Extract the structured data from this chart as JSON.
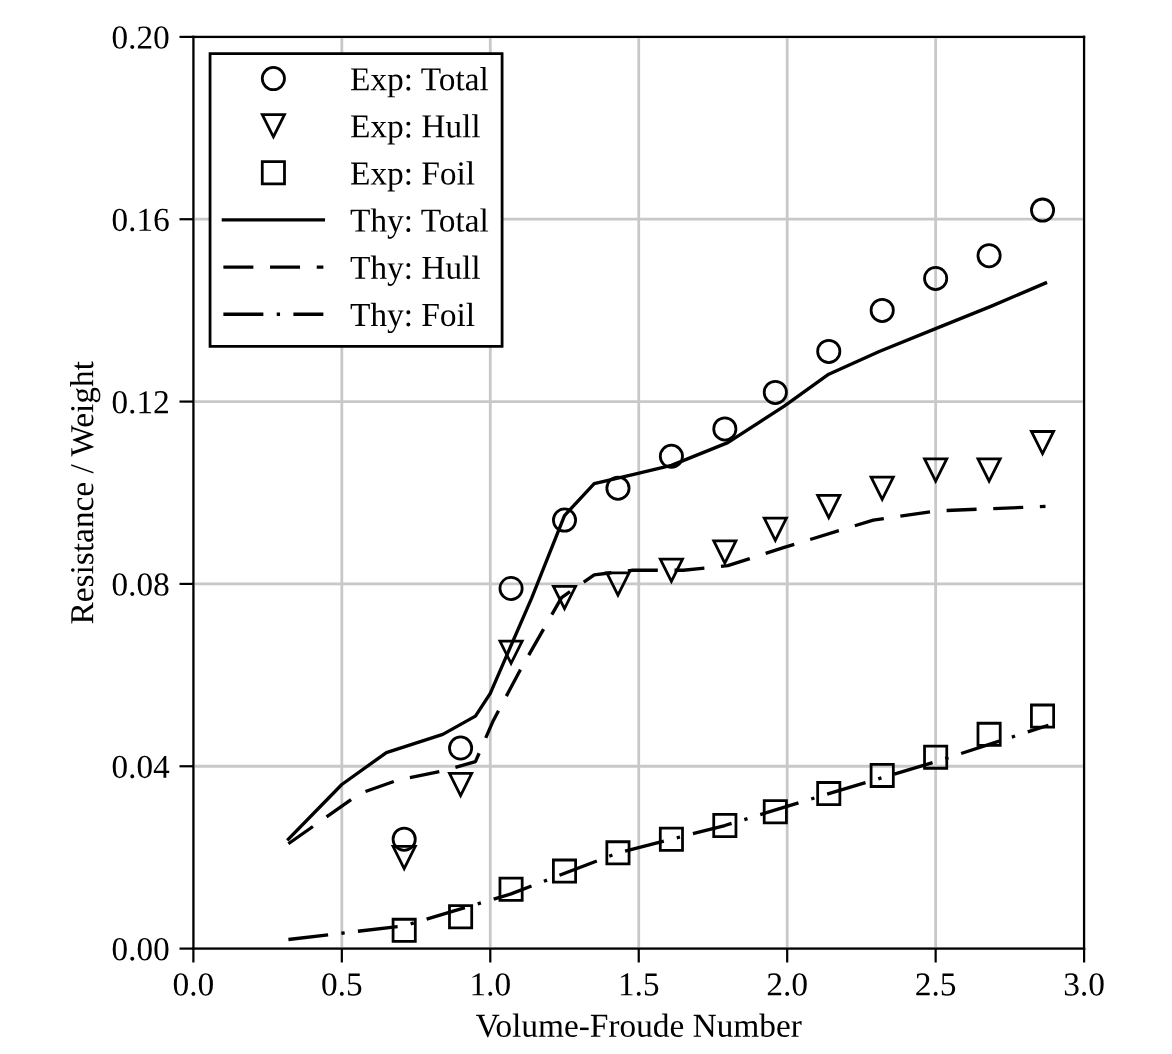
{
  "chart_data": {
    "type": "line",
    "xlabel": "Volume-Froude Number",
    "ylabel": "Resistance / Weight",
    "xlim": [
      0.0,
      3.0
    ],
    "ylim": [
      0.0,
      0.2
    ],
    "xticks": [
      {
        "value": 0,
        "label": "0.0"
      },
      0.5,
      {
        "value": 1,
        "label": "1.0"
      },
      1.5,
      {
        "value": 2,
        "label": "2.0"
      },
      2.5,
      {
        "value": 3,
        "label": "3.0"
      }
    ],
    "yticks": [
      {
        "value": 0,
        "label": "0.00"
      },
      0.04,
      0.08,
      0.12,
      0.16,
      {
        "value": 0.2,
        "label": "0.20"
      }
    ],
    "grid": true,
    "legend": "top left",
    "series": [
      {
        "name": "Exp: Total",
        "type": "scatter",
        "marker": "circle",
        "color": "#000000",
        "x": [
          0.71,
          0.9,
          1.07,
          1.25,
          1.43,
          1.61,
          1.79,
          1.96,
          2.14,
          2.32,
          2.5,
          2.68,
          2.86
        ],
        "values": [
          0.024,
          0.044,
          0.079,
          0.094,
          0.101,
          0.108,
          0.114,
          0.122,
          0.131,
          0.14,
          0.147,
          0.152,
          0.162
        ]
      },
      {
        "name": "Exp: Hull",
        "type": "scatter",
        "marker": "triangle",
        "color": "#000000",
        "x": [
          0.71,
          0.9,
          1.07,
          1.25,
          1.43,
          1.61,
          1.79,
          1.96,
          2.14,
          2.32,
          2.5,
          2.68,
          2.86
        ],
        "values": [
          0.02,
          0.036,
          0.065,
          0.077,
          0.08,
          0.083,
          0.087,
          0.092,
          0.097,
          0.101,
          0.105,
          0.105,
          0.111
        ]
      },
      {
        "name": "Exp: Foil",
        "type": "scatter",
        "marker": "square",
        "color": "#000000",
        "x": [
          0.71,
          0.9,
          1.07,
          1.25,
          1.43,
          1.61,
          1.79,
          1.96,
          2.14,
          2.32,
          2.5,
          2.68,
          2.86
        ],
        "values": [
          0.004,
          0.007,
          0.013,
          0.017,
          0.021,
          0.024,
          0.027,
          0.03,
          0.034,
          0.038,
          0.042,
          0.047,
          0.051
        ]
      },
      {
        "name": "Thy: Total",
        "line_style": "solid",
        "color": "#000000",
        "x": [
          0.32,
          0.5,
          0.65,
          0.84,
          0.95,
          1.0,
          1.14,
          1.25,
          1.35,
          1.48,
          1.61,
          1.8,
          1.99,
          2.14,
          2.31,
          2.5,
          2.69,
          2.87
        ],
        "values": [
          0.024,
          0.036,
          0.043,
          0.047,
          0.051,
          0.056,
          0.077,
          0.095,
          0.102,
          0.104,
          0.106,
          0.111,
          0.119,
          0.126,
          0.131,
          0.136,
          0.141,
          0.146
        ]
      },
      {
        "name": "Thy: Hull",
        "line_style": "dashed",
        "color": "#000000",
        "x": [
          0.32,
          0.56,
          0.69,
          0.84,
          0.95,
          1.01,
          1.1,
          1.24,
          1.35,
          1.48,
          1.65,
          1.8,
          1.99,
          2.29,
          2.5,
          2.87
        ],
        "values": [
          0.023,
          0.034,
          0.037,
          0.039,
          0.041,
          0.05,
          0.061,
          0.077,
          0.082,
          0.083,
          0.083,
          0.084,
          0.088,
          0.094,
          0.096,
          0.097
        ]
      },
      {
        "name": "Thy: Foil",
        "line_style": "dashdot",
        "color": "#000000",
        "x": [
          0.32,
          0.71,
          1.07,
          1.43,
          1.79,
          2.14,
          2.5,
          2.88
        ],
        "values": [
          0.002,
          0.005,
          0.012,
          0.021,
          0.027,
          0.034,
          0.041,
          0.049
        ]
      }
    ]
  }
}
